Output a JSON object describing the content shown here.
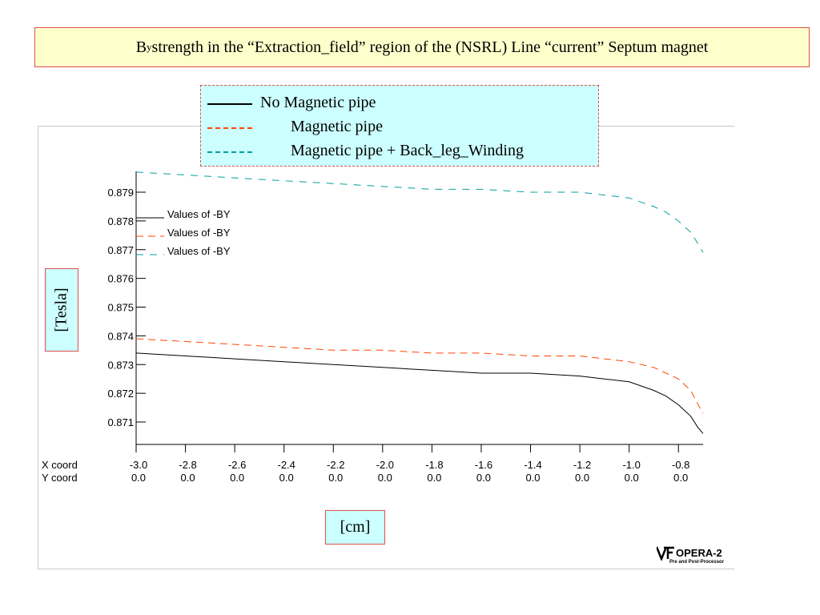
{
  "title": {
    "prefix": "B",
    "sub": "y",
    "rest": " strength in the “Extraction_field” region of the (NSRL) Line “current” Septum  magnet"
  },
  "legend": [
    {
      "label": "No Magnetic pipe",
      "color": "#000000",
      "style": "solid"
    },
    {
      "label": "Magnetic pipe",
      "color": "#ff4400",
      "style": "dashed"
    },
    {
      "label": "Magnetic pipe + Back_leg_Winding",
      "color": "#00a0a0",
      "style": "dashed"
    }
  ],
  "ylabel_box": "[Tesla]",
  "xlabel_box": "[cm]",
  "logo": {
    "name": "OPERA-2",
    "sub": "Pre and Post-Processor"
  },
  "chart_data": {
    "type": "line",
    "xlim": [
      -3.0,
      -0.7
    ],
    "ylim": [
      0.8705,
      0.8797
    ],
    "yticks": [
      "0.879",
      "0.878",
      "0.877",
      "0.876",
      "0.875",
      "0.874",
      "0.873",
      "0.872",
      "0.871"
    ],
    "ytick_values": [
      0.879,
      0.878,
      0.877,
      0.876,
      0.875,
      0.874,
      0.873,
      0.872,
      0.871
    ],
    "xtick_values": [
      -3.0,
      -2.8,
      -2.6,
      -2.4,
      -2.2,
      -2.0,
      -1.8,
      -1.6,
      -1.4,
      -1.2,
      -1.0,
      -0.8
    ],
    "xticks": [
      "-3.0",
      "-2.8",
      "-2.6",
      "-2.4",
      "-2.2",
      "-2.0",
      "-1.8",
      "-1.6",
      "-1.4",
      "-1.2",
      "-1.0",
      "-0.8"
    ],
    "y_coord_ticks": [
      "0.0",
      "0.0",
      "0.0",
      "0.0",
      "0.0",
      "0.0",
      "0.0",
      "0.0",
      "0.0",
      "0.0",
      "0.0",
      "0.0"
    ],
    "x_row_label": "X coord",
    "y_row_label": "Y coord",
    "inner_legend": [
      "Values of -BY",
      "Values of -BY",
      "Values of -BY"
    ],
    "series": [
      {
        "name": "Values of -BY",
        "color": "#000000",
        "dash": "solid",
        "x": [
          -3.0,
          -2.8,
          -2.6,
          -2.4,
          -2.2,
          -2.0,
          -1.8,
          -1.6,
          -1.4,
          -1.2,
          -1.1,
          -1.0,
          -0.9,
          -0.85,
          -0.8,
          -0.75,
          -0.72,
          -0.7
        ],
        "y": [
          0.8734,
          0.8733,
          0.8732,
          0.8731,
          0.873,
          0.8729,
          0.8728,
          0.8727,
          0.8727,
          0.8726,
          0.8725,
          0.8724,
          0.8721,
          0.8719,
          0.8716,
          0.8712,
          0.8708,
          0.8706
        ]
      },
      {
        "name": "Values of -BY",
        "color": "#ff4400",
        "dash": "dashed",
        "x": [
          -3.0,
          -2.8,
          -2.6,
          -2.4,
          -2.2,
          -2.0,
          -1.8,
          -1.6,
          -1.4,
          -1.2,
          -1.1,
          -1.0,
          -0.9,
          -0.85,
          -0.8,
          -0.75,
          -0.72,
          -0.7
        ],
        "y": [
          0.8739,
          0.8738,
          0.8737,
          0.8736,
          0.8735,
          0.8735,
          0.8734,
          0.8734,
          0.8733,
          0.8733,
          0.8732,
          0.8731,
          0.8729,
          0.8727,
          0.8725,
          0.8721,
          0.8716,
          0.8713
        ]
      },
      {
        "name": "Values of -BY",
        "color": "#00a0a0",
        "dash": "dashed",
        "x": [
          -3.0,
          -2.8,
          -2.6,
          -2.4,
          -2.2,
          -2.0,
          -1.8,
          -1.6,
          -1.4,
          -1.2,
          -1.1,
          -1.0,
          -0.9,
          -0.85,
          -0.8,
          -0.75,
          -0.72,
          -0.7
        ],
        "y": [
          0.8797,
          0.8796,
          0.8795,
          0.8794,
          0.8793,
          0.8792,
          0.8791,
          0.8791,
          0.879,
          0.879,
          0.8789,
          0.8788,
          0.8785,
          0.8783,
          0.878,
          0.8776,
          0.8772,
          0.8769
        ]
      }
    ]
  }
}
